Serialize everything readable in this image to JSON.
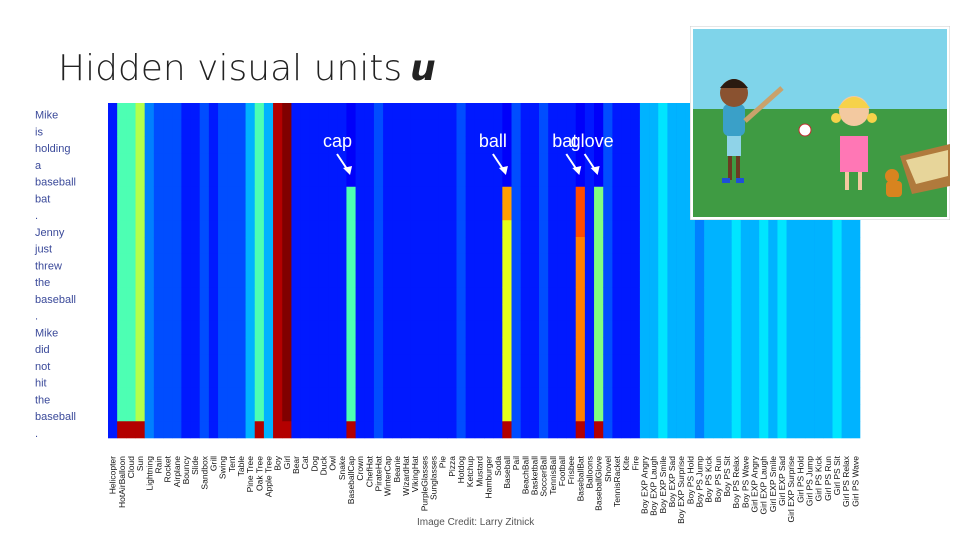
{
  "slide": {
    "title": "Hidden visual units",
    "title_symbol": "u",
    "credit": "Image Credit: Larry Zitnick"
  },
  "scene": {
    "description_alt": "Cartoon of a boy holding a baseball bat and a girl who threw a ball, with a cat and sandbox"
  },
  "colors": {
    "low": "#1a1ae0",
    "high": "#8b0000",
    "grass": "#3f9b43",
    "sky": "#7fd4ea"
  },
  "chart_data": {
    "type": "heatmap",
    "title": "Hidden visual units u",
    "columns": [
      "Helicopter",
      "HotAirBalloon",
      "Cloud",
      "Sun",
      "Lightning",
      "Rain",
      "Rocket",
      "Airplane",
      "Bouncy",
      "Slide",
      "Sandbox",
      "Grill",
      "Swing",
      "Tent",
      "Table",
      "Pine Tree",
      "Oak Tree",
      "Apple Tree",
      "Boy",
      "Girl",
      "Bear",
      "Cat",
      "Dog",
      "Duck",
      "Owl",
      "Snake",
      "BaseballCap",
      "Crown",
      "ChefHat",
      "PirateHat",
      "WinterCap",
      "Beanie",
      "WizardHat",
      "VikingHat",
      "PurpleGlasses",
      "Sunglasses",
      "Pie",
      "Pizza",
      "Hotdog",
      "Ketchup",
      "Mustard",
      "Hamburger",
      "Soda",
      "Baseball",
      "Pail",
      "BeachBall",
      "Basketball",
      "SoccerBall",
      "TennisBall",
      "Football",
      "Frisbee",
      "BaseballBat",
      "Balloons",
      "BaseballGlove",
      "Shovel",
      "TennisRacket",
      "Kite",
      "Fire",
      "Boy EXP Angry",
      "Boy EXP Laugh",
      "Boy EXP Smile",
      "Boy EXP Sad",
      "Boy EXP Surprise",
      "Boy PS Hold",
      "Boy PS Jump",
      "Boy PS Kick",
      "Boy PS Run",
      "Boy PS Sit",
      "Boy PS Relax",
      "Boy PS Wave",
      "Girl EXP Angry",
      "Girl EXP Laugh",
      "Girl EXP Smile",
      "Girl EXP Sad",
      "Girl EXP Surprise",
      "Girl PS Hold",
      "Girl PS Jump",
      "Girl PS Kick",
      "Girl PS Run",
      "Girl PS Sit",
      "Girl PS Relax",
      "Girl PS Wave"
    ],
    "rows": [
      "Mike",
      "is",
      "holding",
      "a",
      "baseball",
      "bat",
      ".",
      "Jenny",
      "just",
      "threw",
      "the",
      "baseball",
      ".",
      "Mike",
      "did",
      "not",
      "hit",
      "the",
      "baseball",
      "."
    ],
    "column_intensity": [
      0.15,
      0.45,
      0.45,
      0.55,
      0.25,
      0.2,
      0.2,
      0.2,
      0.15,
      0.15,
      0.2,
      0.15,
      0.2,
      0.2,
      0.2,
      0.3,
      0.45,
      0.3,
      0.95,
      1.0,
      0.15,
      0.15,
      0.15,
      0.15,
      0.15,
      0.15,
      0.45,
      0.15,
      0.15,
      0.2,
      0.15,
      0.15,
      0.15,
      0.15,
      0.15,
      0.15,
      0.15,
      0.15,
      0.2,
      0.15,
      0.15,
      0.15,
      0.15,
      0.6,
      0.2,
      0.15,
      0.15,
      0.2,
      0.15,
      0.15,
      0.15,
      0.75,
      0.15,
      0.5,
      0.2,
      0.15,
      0.15,
      0.15,
      0.3,
      0.3,
      0.35,
      0.3,
      0.3,
      0.3,
      0.25,
      0.3,
      0.3,
      0.3,
      0.35,
      0.3,
      0.3,
      0.35,
      0.3,
      0.35,
      0.3,
      0.3,
      0.3,
      0.3,
      0.3,
      0.35,
      0.3,
      0.3
    ],
    "annotations": [
      {
        "label": "cap",
        "column": "BaseballCap"
      },
      {
        "label": "ball",
        "column": "Baseball"
      },
      {
        "label": "bat",
        "column": "BaseballBat"
      },
      {
        "label": "glove",
        "column": "BaseballGlove"
      }
    ],
    "colormap": "jet",
    "range": [
      0,
      1
    ]
  }
}
